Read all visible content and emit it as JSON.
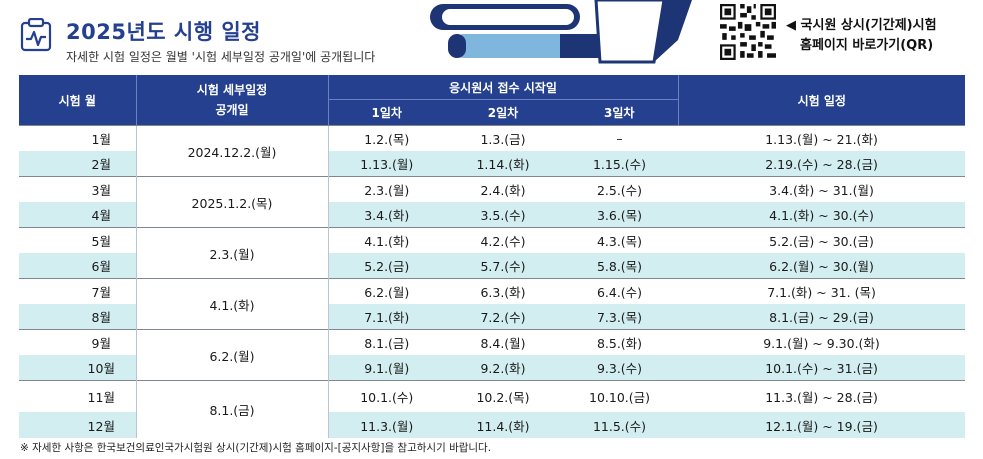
{
  "header": {
    "title": "2025년도 시행 일정",
    "subtitle": "자세한 시험 일정은  월별 '시험 세부일정 공개일'에 공개됩니다",
    "qr_line1": "◀ 국시원 상시(기간제)시험",
    "qr_line2": "홈페이지 바로가기(QR)",
    "icons": [
      "calendar-pulse-icon",
      "qr-code-icon"
    ]
  },
  "table": {
    "headers": {
      "month": "시험 월",
      "publish": "시험 세부일정\n공개일",
      "reception": "응시원서 접수 시작일",
      "day1": "1일차",
      "day2": "2일차",
      "day3": "3일차",
      "schedule": "시험 일정"
    },
    "groups": [
      {
        "publish": "2024.12.2.(월)",
        "rows": [
          {
            "month": "1월",
            "d1": "1.2.(목)",
            "d2": "1.3.(금)",
            "d3": "–",
            "schedule": "1.13.(월) ~ 21.(화)"
          },
          {
            "month": "2월",
            "d1": "1.13.(월)",
            "d2": "1.14.(화)",
            "d3": "1.15.(수)",
            "schedule": "2.19.(수) ~ 28.(금)"
          }
        ]
      },
      {
        "publish": "2025.1.2.(목)",
        "rows": [
          {
            "month": "3월",
            "d1": "2.3.(월)",
            "d2": "2.4.(화)",
            "d3": "2.5.(수)",
            "schedule": "3.4.(화) ~ 31.(월)"
          },
          {
            "month": "4월",
            "d1": "3.4.(화)",
            "d2": "3.5.(수)",
            "d3": "3.6.(목)",
            "schedule": "4.1.(화) ~ 30.(수)"
          }
        ]
      },
      {
        "publish": "2.3.(월)",
        "rows": [
          {
            "month": "5월",
            "d1": "4.1.(화)",
            "d2": "4.2.(수)",
            "d3": "4.3.(목)",
            "schedule": "5.2.(금) ~ 30.(금)"
          },
          {
            "month": "6월",
            "d1": "5.2.(금)",
            "d2": "5.7.(수)",
            "d3": "5.8.(목)",
            "schedule": "6.2.(월) ~ 30.(월)"
          }
        ]
      },
      {
        "publish": "4.1.(화)",
        "rows": [
          {
            "month": "7월",
            "d1": "6.2.(월)",
            "d2": "6.3.(화)",
            "d3": "6.4.(수)",
            "schedule": "7.1.(화) ~ 31. (목)"
          },
          {
            "month": "8월",
            "d1": "7.1.(화)",
            "d2": "7.2.(수)",
            "d3": "7.3.(목)",
            "schedule": "8.1.(금) ~ 29.(금)"
          }
        ]
      },
      {
        "publish": "6.2.(월)",
        "rows": [
          {
            "month": "9월",
            "d1": "8.1.(금)",
            "d2": "8.4.(월)",
            "d3": "8.5.(화)",
            "schedule": "9.1.(월) ~ 9.30.(화)"
          },
          {
            "month": "10월",
            "d1": "9.1.(월)",
            "d2": "9.2.(화)",
            "d3": "9.3.(수)",
            "schedule": "10.1.(수) ~ 31.(금)"
          }
        ]
      },
      {
        "publish": "8.1.(금)",
        "rows": [
          {
            "month": "11월",
            "d1": "10.1.(수)",
            "d2": "10.2.(목)",
            "d3": "10.10.(금)",
            "schedule": "11.3.(월) ~ 28.(금)"
          },
          {
            "month": "12월",
            "d1": "11.3.(월)",
            "d2": "11.4.(화)",
            "d3": "11.5.(수)",
            "schedule": "12.1.(월) ~ 19.(금)"
          }
        ]
      }
    ]
  },
  "footnote": "※ 자세한 사항은 한국보건의료인국가시험원 상시(기간제)시험 홈페이지-[공지사항]을 참고하시기 바랍니다.",
  "colors": {
    "header_bg": "#24408e",
    "alt_row": "#d3eef1",
    "title": "#24408e"
  }
}
